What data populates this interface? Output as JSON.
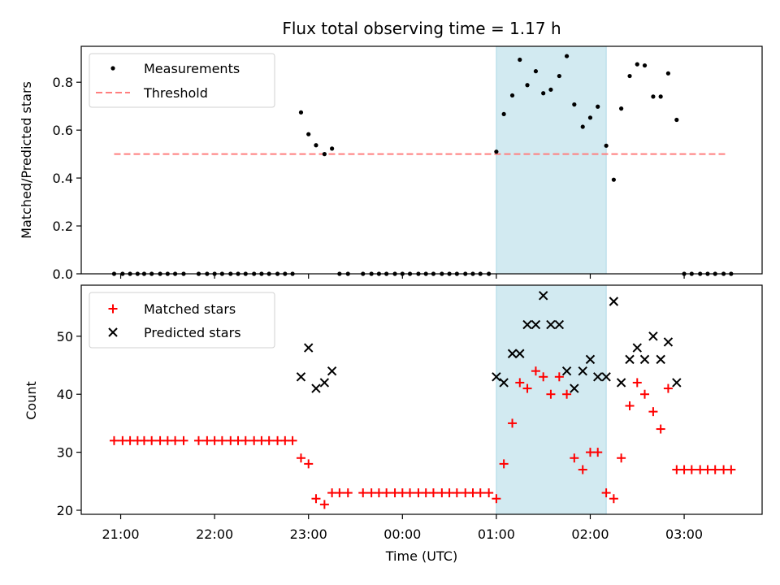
{
  "chart_data": {
    "type": "scatter",
    "title": "Flux total observing time = 1.17 h",
    "xlabel": "Time (UTC)",
    "x_ticks": [
      "21:00",
      "22:00",
      "23:00",
      "00:00",
      "01:00",
      "02:00",
      "03:00"
    ],
    "x_tick_hours": [
      21,
      22,
      23,
      24,
      25,
      26,
      27
    ],
    "xlim_hours": [
      20.58,
      27.83
    ],
    "highlight_span_hours": [
      25.0,
      26.17
    ],
    "colors": {
      "measurement": "#000000",
      "threshold": "#ff7f7f",
      "matched": "#ff0000",
      "predicted": "#000000",
      "span": "#add8e6"
    },
    "top_panel": {
      "ylabel": "Matched/Predicted stars",
      "ylim": [
        0.0,
        0.95
      ],
      "y_ticks": [
        0.0,
        0.2,
        0.4,
        0.6,
        0.8
      ],
      "y_tick_labels": [
        "0.0",
        "0.2",
        "0.4",
        "0.6",
        "0.8"
      ],
      "legend": {
        "placement": "top-left",
        "entries": [
          "Measurements",
          "Threshold"
        ]
      },
      "threshold": {
        "value": 0.5,
        "x_range_hours": [
          20.93,
          27.47
        ]
      },
      "measurements": [
        [
          20.93,
          0.0
        ],
        [
          21.02,
          0.0
        ],
        [
          21.1,
          0.0
        ],
        [
          21.18,
          0.0
        ],
        [
          21.25,
          0.0
        ],
        [
          21.33,
          0.0
        ],
        [
          21.42,
          0.0
        ],
        [
          21.5,
          0.0
        ],
        [
          21.58,
          0.0
        ],
        [
          21.67,
          0.0
        ],
        [
          21.83,
          0.0
        ],
        [
          21.92,
          0.0
        ],
        [
          22.0,
          0.0
        ],
        [
          22.08,
          0.0
        ],
        [
          22.17,
          0.0
        ],
        [
          22.25,
          0.0
        ],
        [
          22.33,
          0.0
        ],
        [
          22.42,
          0.0
        ],
        [
          22.5,
          0.0
        ],
        [
          22.58,
          0.0
        ],
        [
          22.67,
          0.0
        ],
        [
          22.75,
          0.0
        ],
        [
          22.83,
          0.0
        ],
        [
          22.92,
          0.674
        ],
        [
          23.0,
          0.583
        ],
        [
          23.08,
          0.537
        ],
        [
          23.17,
          0.5
        ],
        [
          23.25,
          0.523
        ],
        [
          23.33,
          0.0
        ],
        [
          23.42,
          0.0
        ],
        [
          23.58,
          0.0
        ],
        [
          23.67,
          0.0
        ],
        [
          23.75,
          0.0
        ],
        [
          23.83,
          0.0
        ],
        [
          23.92,
          0.0
        ],
        [
          24.0,
          0.0
        ],
        [
          24.08,
          0.0
        ],
        [
          24.17,
          0.0
        ],
        [
          24.25,
          0.0
        ],
        [
          24.33,
          0.0
        ],
        [
          24.42,
          0.0
        ],
        [
          24.5,
          0.0
        ],
        [
          24.58,
          0.0
        ],
        [
          24.67,
          0.0
        ],
        [
          24.75,
          0.0
        ],
        [
          24.83,
          0.0
        ],
        [
          24.92,
          0.0
        ],
        [
          25.0,
          0.51
        ],
        [
          25.08,
          0.667
        ],
        [
          25.17,
          0.745
        ],
        [
          25.25,
          0.894
        ],
        [
          25.33,
          0.788
        ],
        [
          25.42,
          0.846
        ],
        [
          25.5,
          0.754
        ],
        [
          25.58,
          0.769
        ],
        [
          25.67,
          0.826
        ],
        [
          25.75,
          0.909
        ],
        [
          25.83,
          0.707
        ],
        [
          25.92,
          0.614
        ],
        [
          26.0,
          0.652
        ],
        [
          26.08,
          0.698
        ],
        [
          26.17,
          0.535
        ],
        [
          26.25,
          0.393
        ],
        [
          26.33,
          0.69
        ],
        [
          26.42,
          0.826
        ],
        [
          26.5,
          0.875
        ],
        [
          26.58,
          0.87
        ],
        [
          26.67,
          0.74
        ],
        [
          26.75,
          0.74
        ],
        [
          26.83,
          0.837
        ],
        [
          26.92,
          0.643
        ],
        [
          27.0,
          0.0
        ],
        [
          27.08,
          0.0
        ],
        [
          27.17,
          0.0
        ],
        [
          27.25,
          0.0
        ],
        [
          27.33,
          0.0
        ],
        [
          27.42,
          0.0
        ],
        [
          27.5,
          0.0
        ]
      ]
    },
    "bottom_panel": {
      "ylabel": "Count",
      "ylim": [
        19.3,
        58.8
      ],
      "y_ticks": [
        20,
        30,
        40,
        50
      ],
      "y_tick_labels": [
        "20",
        "30",
        "40",
        "50"
      ],
      "legend": {
        "placement": "top-left",
        "entries": [
          "Matched stars",
          "Predicted stars"
        ]
      },
      "matched": [
        [
          20.93,
          32
        ],
        [
          21.02,
          32
        ],
        [
          21.1,
          32
        ],
        [
          21.18,
          32
        ],
        [
          21.25,
          32
        ],
        [
          21.33,
          32
        ],
        [
          21.42,
          32
        ],
        [
          21.5,
          32
        ],
        [
          21.58,
          32
        ],
        [
          21.67,
          32
        ],
        [
          21.83,
          32
        ],
        [
          21.92,
          32
        ],
        [
          22.0,
          32
        ],
        [
          22.08,
          32
        ],
        [
          22.17,
          32
        ],
        [
          22.25,
          32
        ],
        [
          22.33,
          32
        ],
        [
          22.42,
          32
        ],
        [
          22.5,
          32
        ],
        [
          22.58,
          32
        ],
        [
          22.67,
          32
        ],
        [
          22.75,
          32
        ],
        [
          22.83,
          32
        ],
        [
          22.92,
          29
        ],
        [
          23.0,
          28
        ],
        [
          23.08,
          22
        ],
        [
          23.17,
          21
        ],
        [
          23.25,
          23
        ],
        [
          23.33,
          23
        ],
        [
          23.42,
          23
        ],
        [
          23.58,
          23
        ],
        [
          23.67,
          23
        ],
        [
          23.75,
          23
        ],
        [
          23.83,
          23
        ],
        [
          23.92,
          23
        ],
        [
          24.0,
          23
        ],
        [
          24.08,
          23
        ],
        [
          24.17,
          23
        ],
        [
          24.25,
          23
        ],
        [
          24.33,
          23
        ],
        [
          24.42,
          23
        ],
        [
          24.5,
          23
        ],
        [
          24.58,
          23
        ],
        [
          24.67,
          23
        ],
        [
          24.75,
          23
        ],
        [
          24.83,
          23
        ],
        [
          24.92,
          23
        ],
        [
          25.0,
          22
        ],
        [
          25.08,
          28
        ],
        [
          25.17,
          35
        ],
        [
          25.25,
          42
        ],
        [
          25.33,
          41
        ],
        [
          25.42,
          44
        ],
        [
          25.5,
          43
        ],
        [
          25.58,
          40
        ],
        [
          25.67,
          43
        ],
        [
          25.75,
          40
        ],
        [
          25.83,
          29
        ],
        [
          25.92,
          27
        ],
        [
          26.0,
          30
        ],
        [
          26.08,
          30
        ],
        [
          26.17,
          23
        ],
        [
          26.25,
          22
        ],
        [
          26.33,
          29
        ],
        [
          26.42,
          38
        ],
        [
          26.5,
          42
        ],
        [
          26.58,
          40
        ],
        [
          26.67,
          37
        ],
        [
          26.75,
          34
        ],
        [
          26.83,
          41
        ],
        [
          26.92,
          27
        ],
        [
          27.0,
          27
        ],
        [
          27.08,
          27
        ],
        [
          27.17,
          27
        ],
        [
          27.25,
          27
        ],
        [
          27.33,
          27
        ],
        [
          27.42,
          27
        ],
        [
          27.5,
          27
        ]
      ],
      "predicted": [
        [
          22.92,
          43
        ],
        [
          23.0,
          48
        ],
        [
          23.08,
          41
        ],
        [
          23.17,
          42
        ],
        [
          23.25,
          44
        ],
        [
          25.0,
          43
        ],
        [
          25.08,
          42
        ],
        [
          25.17,
          47
        ],
        [
          25.25,
          47
        ],
        [
          25.33,
          52
        ],
        [
          25.42,
          52
        ],
        [
          25.5,
          57
        ],
        [
          25.58,
          52
        ],
        [
          25.67,
          52
        ],
        [
          25.75,
          44
        ],
        [
          25.83,
          41
        ],
        [
          25.92,
          44
        ],
        [
          26.0,
          46
        ],
        [
          26.08,
          43
        ],
        [
          26.17,
          43
        ],
        [
          26.25,
          56
        ],
        [
          26.33,
          42
        ],
        [
          26.42,
          46
        ],
        [
          26.5,
          48
        ],
        [
          26.58,
          46
        ],
        [
          26.67,
          50
        ],
        [
          26.75,
          46
        ],
        [
          26.83,
          49
        ],
        [
          26.92,
          42
        ]
      ]
    }
  }
}
